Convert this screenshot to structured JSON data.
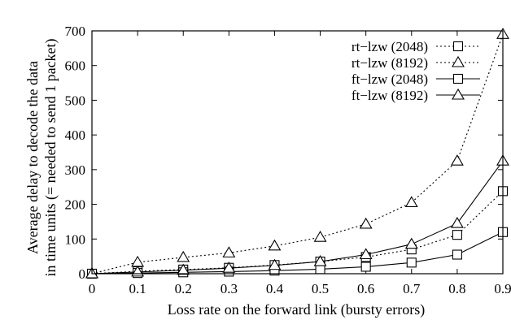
{
  "chart_data": {
    "type": "line",
    "title": "",
    "xlabel": "Loss rate on the forward link (bursty errors)",
    "ylabel_lines": [
      "Average delay to decode the data",
      "in time units (= needed to send 1 packet)"
    ],
    "xlim": [
      0,
      0.9
    ],
    "ylim": [
      0,
      700
    ],
    "xticks": [
      "0",
      "0.1",
      "0.2",
      "0.3",
      "0.4",
      "0.5",
      "0.6",
      "0.7",
      "0.8",
      "0.9"
    ],
    "yticks": [
      "0",
      "100",
      "200",
      "300",
      "400",
      "500",
      "600",
      "700"
    ],
    "grid": false,
    "legend_position": "top-right",
    "x": [
      0,
      0.1,
      0.2,
      0.3,
      0.4,
      0.5,
      0.6,
      0.7,
      0.8,
      0.9
    ],
    "series": [
      {
        "name": "rt−lzw (2048)",
        "line": "dotted",
        "marker": "square",
        "values": [
          0,
          7,
          12,
          17,
          25,
          35,
          48,
          70,
          112,
          238
        ]
      },
      {
        "name": "rt−lzw (8192)",
        "line": "dotted",
        "marker": "triangle",
        "values": [
          0,
          33,
          47,
          60,
          80,
          105,
          143,
          205,
          325,
          690
        ]
      },
      {
        "name": "ft−lzw (2048)",
        "line": "solid",
        "marker": "square",
        "values": [
          0,
          2,
          4,
          6,
          9,
          13,
          20,
          32,
          55,
          120
        ]
      },
      {
        "name": "ft−lzw (8192)",
        "line": "solid",
        "marker": "triangle",
        "values": [
          0,
          5,
          10,
          16,
          24,
          35,
          55,
          85,
          145,
          325
        ]
      }
    ]
  }
}
